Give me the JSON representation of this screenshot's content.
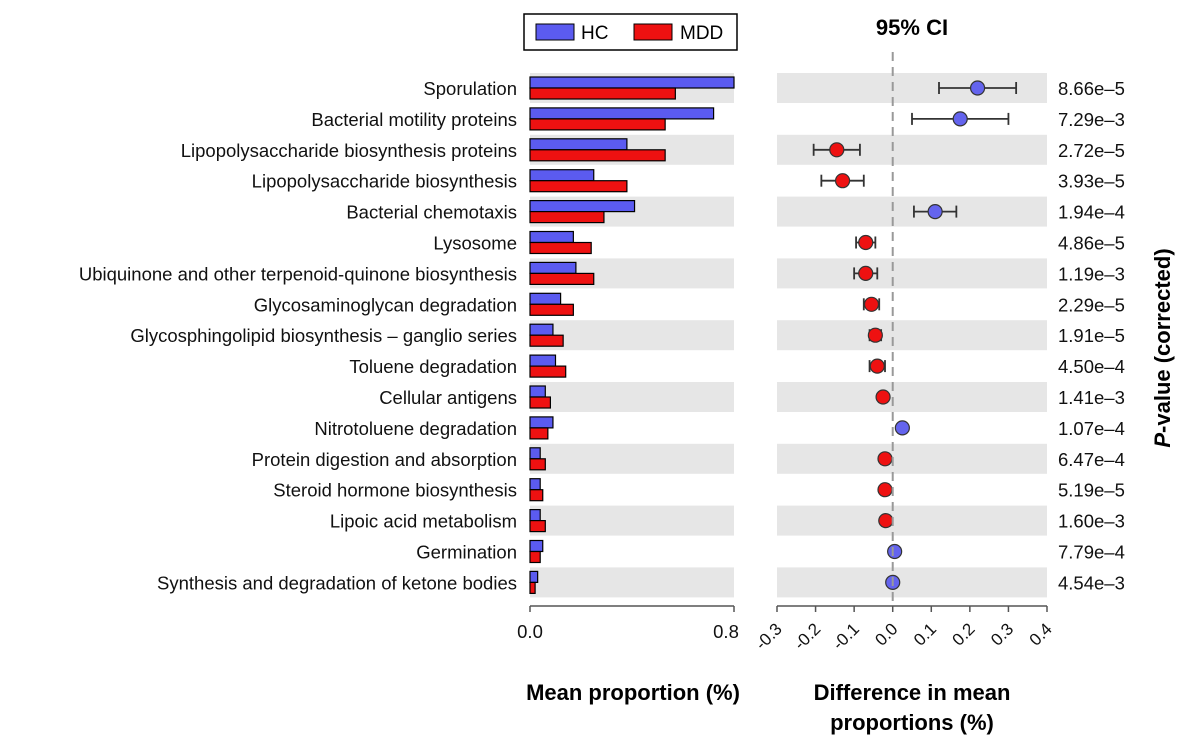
{
  "chart_data": [
    {
      "type": "bar",
      "xlabel": "Mean proportion (%)",
      "xlim": [
        0,
        0.8
      ],
      "xticks": [
        "0.0",
        "0.8"
      ],
      "categories": [
        "Sporulation",
        "Bacterial motility proteins",
        "Lipopolysaccharide biosynthesis proteins",
        "Lipopolysaccharide biosynthesis",
        "Bacterial chemotaxis",
        "Lysosome",
        "Ubiquinone and other terpenoid-quinone biosynthesis",
        "Glycosaminoglycan degradation",
        "Glycosphingolipid biosynthesis – ganglio series",
        "Toluene degradation",
        "Cellular antigens",
        "Nitrotoluene degradation",
        "Protein digestion and absorption",
        "Steroid hormone biosynthesis",
        "Lipoic acid metabolism",
        "Germination",
        "Synthesis and degradation of ketone bodies"
      ],
      "series": [
        {
          "name": "HC",
          "color": "#5b5bf0",
          "values": [
            0.8,
            0.72,
            0.38,
            0.25,
            0.41,
            0.17,
            0.18,
            0.12,
            0.09,
            0.1,
            0.06,
            0.09,
            0.04,
            0.04,
            0.04,
            0.05,
            0.03
          ]
        },
        {
          "name": "MDD",
          "color": "#ee1111",
          "values": [
            0.57,
            0.53,
            0.53,
            0.38,
            0.29,
            0.24,
            0.25,
            0.17,
            0.13,
            0.14,
            0.08,
            0.07,
            0.06,
            0.05,
            0.06,
            0.04,
            0.02
          ]
        }
      ],
      "legend": "top"
    },
    {
      "type": "scatter",
      "title": "95% CI",
      "xlabel": "Difference in mean proportions (%)",
      "y2label": "P-value (corrected)",
      "xlim": [
        -0.3,
        0.4
      ],
      "xticks": [
        "-0.3",
        "-0.2",
        "-0.1",
        "0.0",
        "0.1",
        "0.2",
        "0.3",
        "0.4"
      ],
      "points": [
        {
          "diff": 0.22,
          "ci": [
            0.12,
            0.32
          ],
          "group": "HC"
        },
        {
          "diff": 0.175,
          "ci": [
            0.05,
            0.3
          ],
          "group": "HC"
        },
        {
          "diff": -0.145,
          "ci": [
            -0.205,
            -0.085
          ],
          "group": "MDD"
        },
        {
          "diff": -0.13,
          "ci": [
            -0.185,
            -0.075
          ],
          "group": "MDD"
        },
        {
          "diff": 0.11,
          "ci": [
            0.055,
            0.165
          ],
          "group": "HC"
        },
        {
          "diff": -0.07,
          "ci": [
            -0.095,
            -0.045
          ],
          "group": "MDD"
        },
        {
          "diff": -0.07,
          "ci": [
            -0.1,
            -0.04
          ],
          "group": "MDD"
        },
        {
          "diff": -0.055,
          "ci": [
            -0.075,
            -0.035
          ],
          "group": "MDD"
        },
        {
          "diff": -0.045,
          "ci": [
            -0.06,
            -0.03
          ],
          "group": "MDD"
        },
        {
          "diff": -0.04,
          "ci": [
            -0.06,
            -0.02
          ],
          "group": "MDD"
        },
        {
          "diff": -0.025,
          "ci": [
            -0.035,
            -0.015
          ],
          "group": "MDD"
        },
        {
          "diff": 0.025,
          "ci": [
            0.015,
            0.035
          ],
          "group": "HC"
        },
        {
          "diff": -0.02,
          "ci": [
            -0.03,
            -0.01
          ],
          "group": "MDD"
        },
        {
          "diff": -0.02,
          "ci": [
            -0.03,
            -0.01
          ],
          "group": "MDD"
        },
        {
          "diff": -0.018,
          "ci": [
            -0.028,
            -0.008
          ],
          "group": "MDD"
        },
        {
          "diff": 0.005,
          "ci": [
            0.0,
            0.01
          ],
          "group": "HC"
        },
        {
          "diff": 0.0,
          "ci": [
            -0.005,
            0.005
          ],
          "group": "HC"
        }
      ],
      "pvalues": [
        "8.66e–5",
        "7.29e–3",
        "2.72e–5",
        "3.93e–5",
        "1.94e–4",
        "4.86e–5",
        "1.19e–3",
        "2.29e–5",
        "1.91e–5",
        "4.50e–4",
        "1.41e–3",
        "1.07e–4",
        "6.47e–4",
        "5.19e–5",
        "1.60e–3",
        "7.79e–4",
        "4.54e–3"
      ]
    }
  ]
}
